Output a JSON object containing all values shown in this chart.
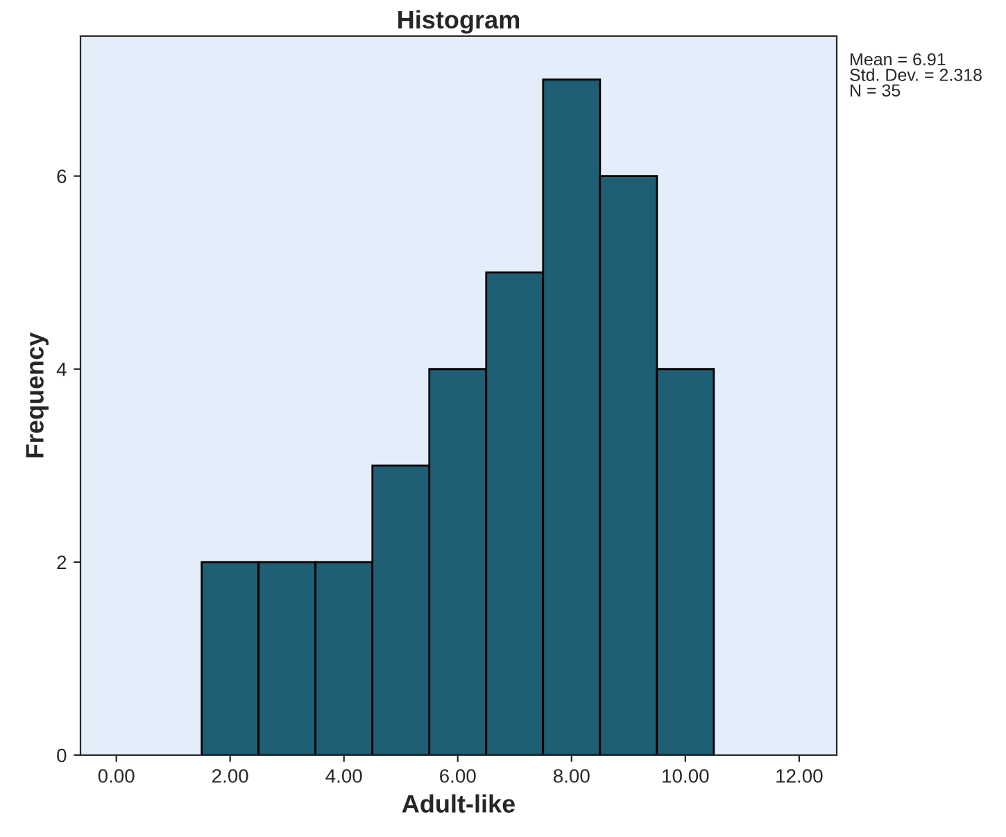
{
  "chart_data": {
    "type": "histogram",
    "title": "Histogram",
    "xlabel": "Adult-like",
    "ylabel": "Frequency",
    "bins": [
      1.5,
      2.5,
      3.5,
      4.5,
      5.5,
      6.5,
      7.5,
      8.5,
      9.5,
      10.5
    ],
    "values": [
      2,
      2,
      2,
      3,
      4,
      5,
      7,
      6,
      4
    ],
    "color": "#1f5f75",
    "xlim": [
      -0.63,
      12.66
    ],
    "xticks": [
      {
        "value": 0,
        "label": "0.00"
      },
      {
        "value": 2,
        "label": "2.00"
      },
      {
        "value": 4,
        "label": "4.00"
      },
      {
        "value": 6,
        "label": "6.00"
      },
      {
        "value": 8,
        "label": "8.00"
      },
      {
        "value": 10,
        "label": "10.00"
      },
      {
        "value": 12,
        "label": "12.00"
      }
    ],
    "ylim": [
      0,
      7.45
    ],
    "yticks": [
      0,
      2,
      4,
      6
    ],
    "annotations": [
      "Mean = 6.91\nStd. Dev. = 2.318\nN = 35"
    ],
    "grid": false,
    "legend": false
  }
}
